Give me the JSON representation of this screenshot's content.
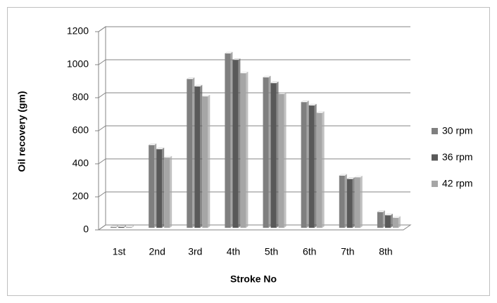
{
  "chart_data": {
    "type": "bar",
    "y_label": "Oil recovery (gm)",
    "x_label": "Stroke No",
    "categories": [
      "1st",
      "2nd",
      "3rd",
      "4th",
      "5th",
      "6th",
      "7th",
      "8th"
    ],
    "series": [
      {
        "name": "30 rpm",
        "color": "#7f7f7f",
        "values": [
          5,
          500,
          900,
          1055,
          910,
          760,
          315,
          95
        ]
      },
      {
        "name": "36 rpm",
        "color": "#595959",
        "values": [
          5,
          475,
          855,
          1015,
          875,
          740,
          295,
          75
        ]
      },
      {
        "name": "42 rpm",
        "color": "#a6a6a6",
        "values": [
          5,
          425,
          795,
          935,
          810,
          695,
          305,
          60
        ]
      }
    ],
    "ylim": [
      0,
      1200
    ],
    "yticks": [
      0,
      200,
      400,
      600,
      800,
      1000,
      1200
    ],
    "grid": true,
    "legend": "right"
  }
}
